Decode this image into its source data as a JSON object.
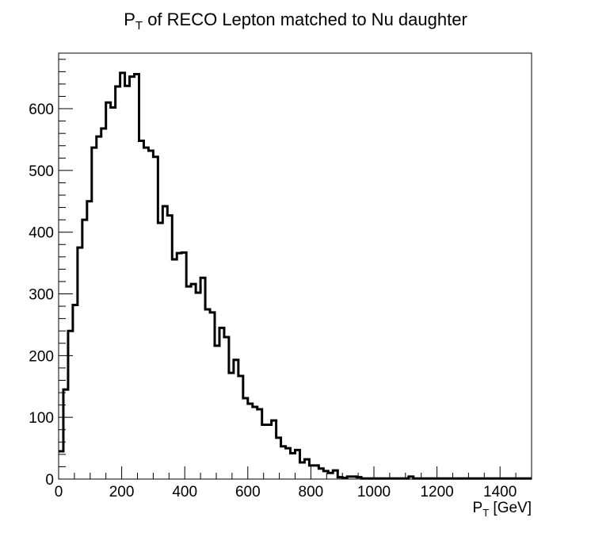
{
  "chart_data": {
    "type": "histogram",
    "title": {
      "main": "P",
      "sub": "T",
      "rest": " of RECO Lepton matched to Nu daughter"
    },
    "xlabel": {
      "main": "P",
      "sub": "T",
      "rest": " [GeV]"
    },
    "ylabel": "",
    "xlim": [
      0,
      1500
    ],
    "ylim": [
      0,
      690
    ],
    "x_major_ticks": [
      0,
      200,
      400,
      600,
      800,
      1000,
      1200,
      1400
    ],
    "y_major_ticks": [
      0,
      100,
      200,
      300,
      400,
      500,
      600
    ],
    "x_minor_step": 50,
    "y_minor_step": 20,
    "grid": false,
    "legend": "none",
    "bin_width": 15,
    "bins_x_low": [
      0,
      15,
      30,
      45,
      60,
      75,
      90,
      105,
      120,
      135,
      150,
      165,
      180,
      195,
      210,
      225,
      240,
      255,
      270,
      285,
      300,
      315,
      330,
      345,
      360,
      375,
      390,
      405,
      420,
      435,
      450,
      465,
      480,
      495,
      510,
      525,
      540,
      555,
      570,
      585,
      600,
      615,
      630,
      645,
      660,
      675,
      690,
      705,
      720,
      735,
      750,
      765,
      780,
      795,
      810,
      825,
      840,
      855,
      870,
      885,
      900,
      915,
      930,
      945,
      960,
      975,
      990,
      1005,
      1020,
      1035,
      1050,
      1065,
      1080,
      1095,
      1110,
      1125,
      1140,
      1155,
      1170,
      1185,
      1200,
      1215,
      1230,
      1245,
      1260,
      1275,
      1290,
      1305,
      1320,
      1335,
      1350,
      1365,
      1380,
      1395,
      1410,
      1425,
      1440,
      1455,
      1470,
      1485
    ],
    "counts": [
      45,
      145,
      240,
      282,
      375,
      420,
      450,
      537,
      555,
      568,
      610,
      602,
      636,
      658,
      637,
      652,
      656,
      548,
      537,
      532,
      522,
      415,
      442,
      427,
      356,
      366,
      367,
      312,
      316,
      302,
      326,
      275,
      270,
      216,
      245,
      230,
      172,
      193,
      167,
      131,
      122,
      117,
      113,
      88,
      88,
      95,
      67,
      53,
      50,
      42,
      47,
      27,
      32,
      22,
      22,
      17,
      13,
      10,
      14,
      3,
      2,
      4,
      4,
      3,
      1,
      1,
      1,
      1,
      1,
      1,
      1,
      1,
      1,
      1,
      4,
      1,
      1,
      1,
      1,
      1,
      1,
      1,
      1,
      1,
      1,
      1,
      1,
      1,
      1,
      1,
      1,
      1,
      1,
      1,
      1,
      1,
      1,
      1,
      1,
      1
    ]
  }
}
